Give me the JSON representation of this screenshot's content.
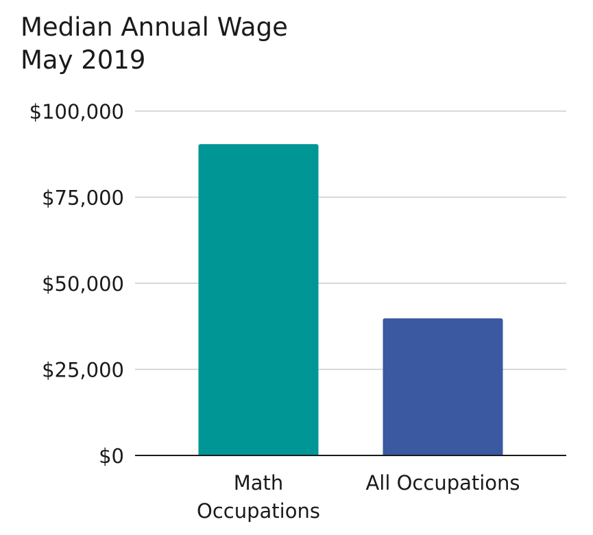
{
  "chart_data": {
    "type": "bar",
    "title": [
      "Median Annual Wage",
      "May 2019"
    ],
    "categories": [
      [
        "Math",
        "Occupations"
      ],
      [
        "All Occupations"
      ]
    ],
    "values": [
      90410,
      39810
    ],
    "ylim": [
      0,
      100000
    ],
    "yticks": [
      0,
      25000,
      50000,
      75000,
      100000
    ],
    "ytick_labels": [
      "$0",
      "$25,000",
      "$50,000",
      "$75,000",
      "$100,000"
    ],
    "colors": [
      "#009696",
      "#3a59a1"
    ],
    "grid_color": "#cccccc",
    "axis_color": "#1a1a1a",
    "grid": true,
    "legend": false
  }
}
